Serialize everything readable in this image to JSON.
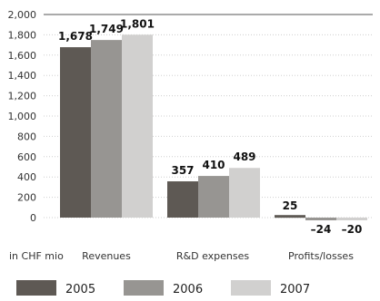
{
  "chart_data": {
    "type": "bar",
    "unit_label": "in CHF mio",
    "categories": [
      "Revenues",
      "R&D expenses",
      "Profits/losses"
    ],
    "series": [
      {
        "name": "2005",
        "color": "#5e5954",
        "values": [
          1678,
          357,
          25
        ]
      },
      {
        "name": "2006",
        "color": "#979592",
        "values": [
          1749,
          410,
          -24
        ]
      },
      {
        "name": "2007",
        "color": "#d1d0cf",
        "values": [
          1801,
          489,
          -20
        ]
      }
    ],
    "data_labels": [
      [
        "1,678",
        "1,749",
        "1,801"
      ],
      [
        "357",
        "410",
        "489"
      ],
      [
        "25",
        "–24",
        "–20"
      ]
    ],
    "y_ticks": [
      2000,
      1800,
      1600,
      1400,
      1200,
      1000,
      800,
      600,
      400,
      200,
      0
    ],
    "y_tick_labels": [
      "2,000",
      "1,800",
      "1,600",
      "1,400",
      "1,200",
      "1,000",
      "800",
      "600",
      "400",
      "200",
      "0"
    ],
    "ylim": [
      -100,
      2000
    ],
    "grid": true,
    "legend_position": "bottom"
  }
}
